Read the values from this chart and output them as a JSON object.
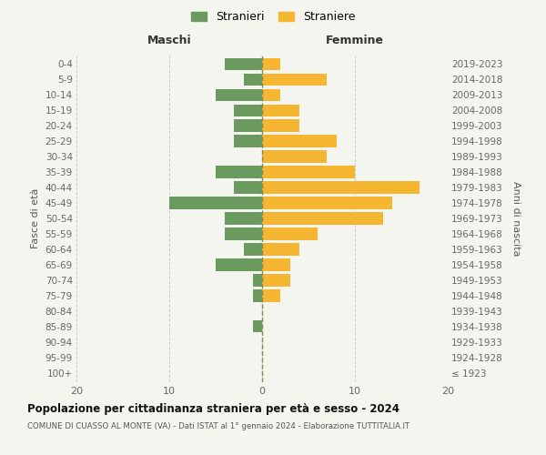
{
  "age_groups": [
    "100+",
    "95-99",
    "90-94",
    "85-89",
    "80-84",
    "75-79",
    "70-74",
    "65-69",
    "60-64",
    "55-59",
    "50-54",
    "45-49",
    "40-44",
    "35-39",
    "30-34",
    "25-29",
    "20-24",
    "15-19",
    "10-14",
    "5-9",
    "0-4"
  ],
  "birth_years": [
    "≤ 1923",
    "1924-1928",
    "1929-1933",
    "1934-1938",
    "1939-1943",
    "1944-1948",
    "1949-1953",
    "1954-1958",
    "1959-1963",
    "1964-1968",
    "1969-1973",
    "1974-1978",
    "1979-1983",
    "1984-1988",
    "1989-1993",
    "1994-1998",
    "1999-2003",
    "2004-2008",
    "2009-2013",
    "2014-2018",
    "2019-2023"
  ],
  "maschi": [
    0,
    0,
    0,
    1,
    0,
    1,
    1,
    5,
    2,
    4,
    4,
    10,
    3,
    5,
    0,
    3,
    3,
    3,
    5,
    2,
    4
  ],
  "femmine": [
    0,
    0,
    0,
    0,
    0,
    2,
    3,
    3,
    4,
    6,
    13,
    14,
    17,
    10,
    7,
    8,
    4,
    4,
    2,
    7,
    2
  ],
  "color_maschi": "#6a9a5f",
  "color_femmine": "#f5b731",
  "xlim": 20,
  "title": "Popolazione per cittadinanza straniera per età e sesso - 2024",
  "subtitle": "COMUNE DI CUASSO AL MONTE (VA) - Dati ISTAT al 1° gennaio 2024 - Elaborazione TUTTITALIA.IT",
  "ylabel_left": "Fasce di età",
  "ylabel_right": "Anni di nascita",
  "label_maschi": "Stranieri",
  "label_femmine": "Straniere",
  "header_maschi": "Maschi",
  "header_femmine": "Femmine",
  "background_color": "#f5f5f0"
}
